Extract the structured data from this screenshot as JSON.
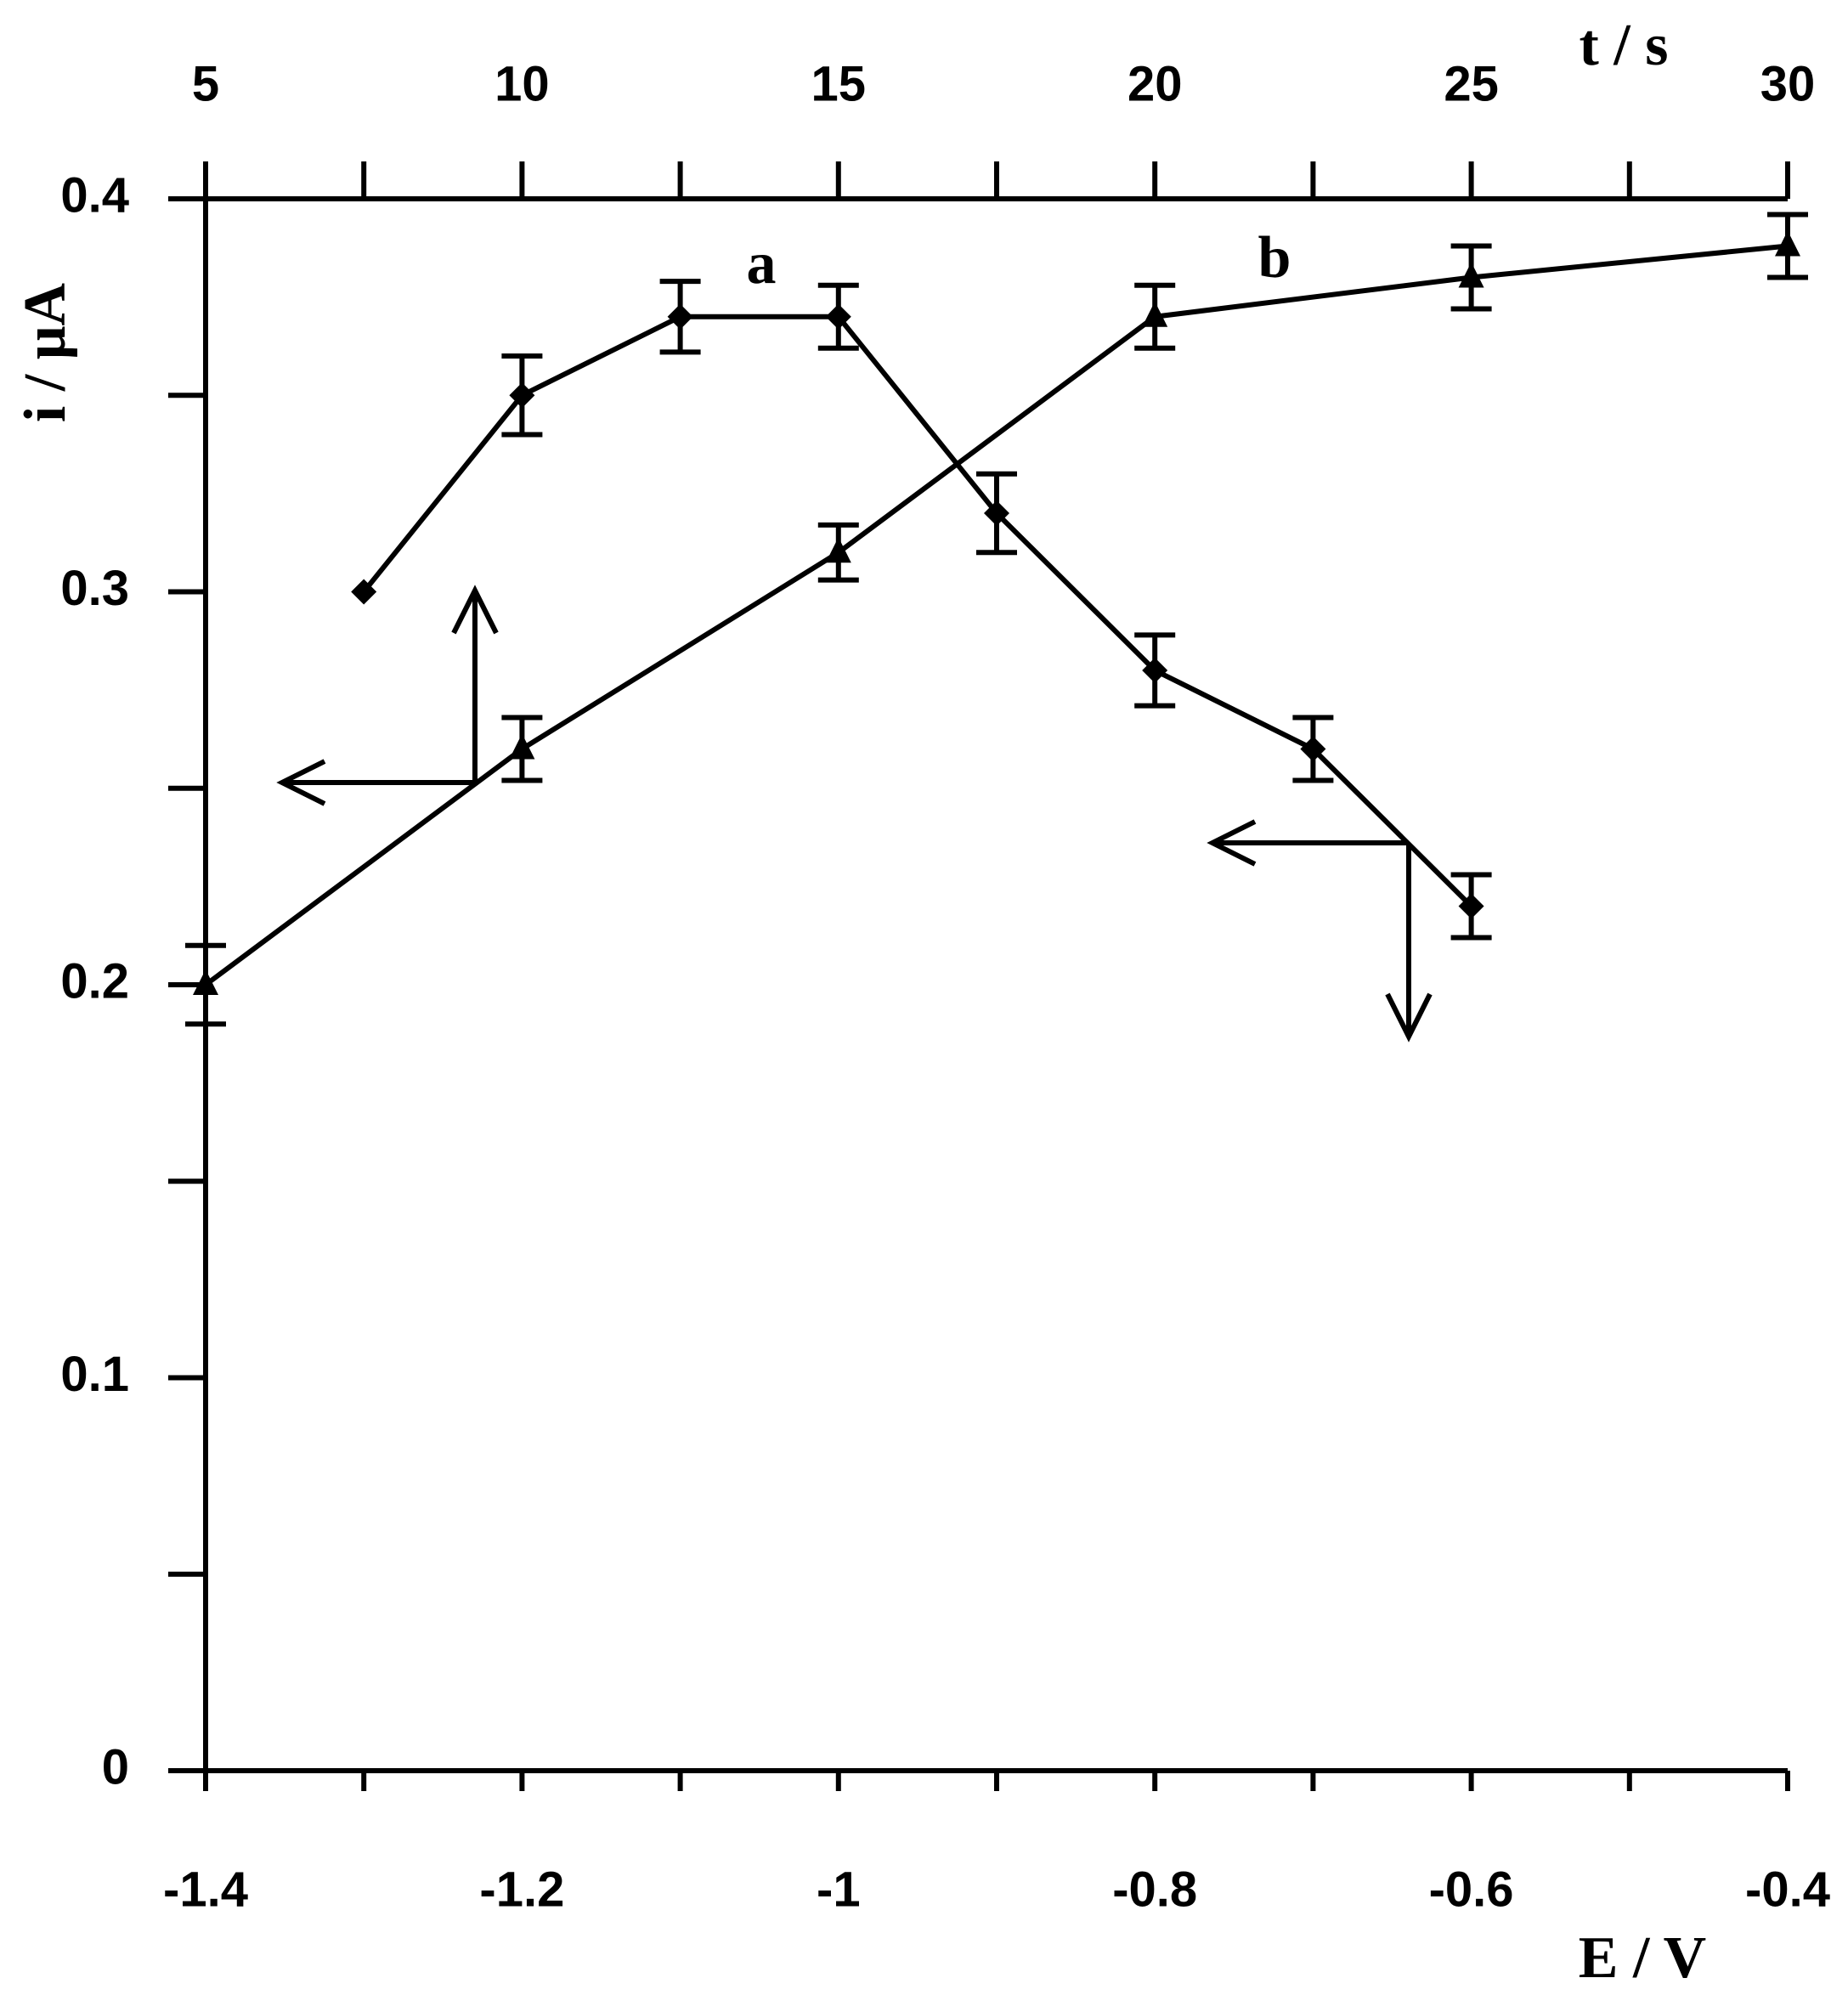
{
  "chart_data": {
    "type": "line",
    "xlabel": "E / V",
    "ylabel": "i / μA",
    "x2label": "t / s",
    "xlim": [
      -1.4,
      -0.4
    ],
    "xticks": [
      -1.4,
      -1.2,
      -1,
      -0.8,
      -0.6,
      -0.4
    ],
    "xminorticks": [
      -1.3,
      -1.1,
      -0.9,
      -0.7,
      -0.5
    ],
    "x2lim": [
      5,
      30
    ],
    "x2ticks": [
      5,
      10,
      15,
      20,
      25,
      30
    ],
    "x2minorticks": [
      7.5,
      12.5,
      17.5,
      22.5,
      27.5
    ],
    "ylim": [
      0,
      0.4
    ],
    "yticks": [
      0,
      0.1,
      0.2,
      0.3,
      0.4
    ],
    "yminorticks": [
      0.05,
      0.15,
      0.25,
      0.35
    ],
    "annotations": [
      "a",
      "b"
    ],
    "series": [
      {
        "name": "a",
        "marker": "diamond",
        "color": "#000000",
        "xaxis": "x",
        "x": [
          -1.3,
          -1.2,
          -1.1,
          -1.0,
          -0.9,
          -0.8,
          -0.7,
          -0.6
        ],
        "values": [
          0.3,
          0.35,
          0.37,
          0.37,
          0.32,
          0.28,
          0.26,
          0.22
        ],
        "errors": [
          null,
          0.01,
          0.009,
          0.008,
          0.01,
          0.009,
          0.008,
          0.008
        ]
      },
      {
        "name": "b",
        "marker": "triangle",
        "color": "#000000",
        "xaxis": "x2",
        "x": [
          5,
          10,
          15,
          20,
          25,
          30
        ],
        "values": [
          0.2,
          0.26,
          0.31,
          0.37,
          0.38,
          0.388
        ],
        "errors": [
          0.01,
          0.008,
          0.007,
          0.008,
          0.008,
          0.008
        ]
      }
    ]
  }
}
